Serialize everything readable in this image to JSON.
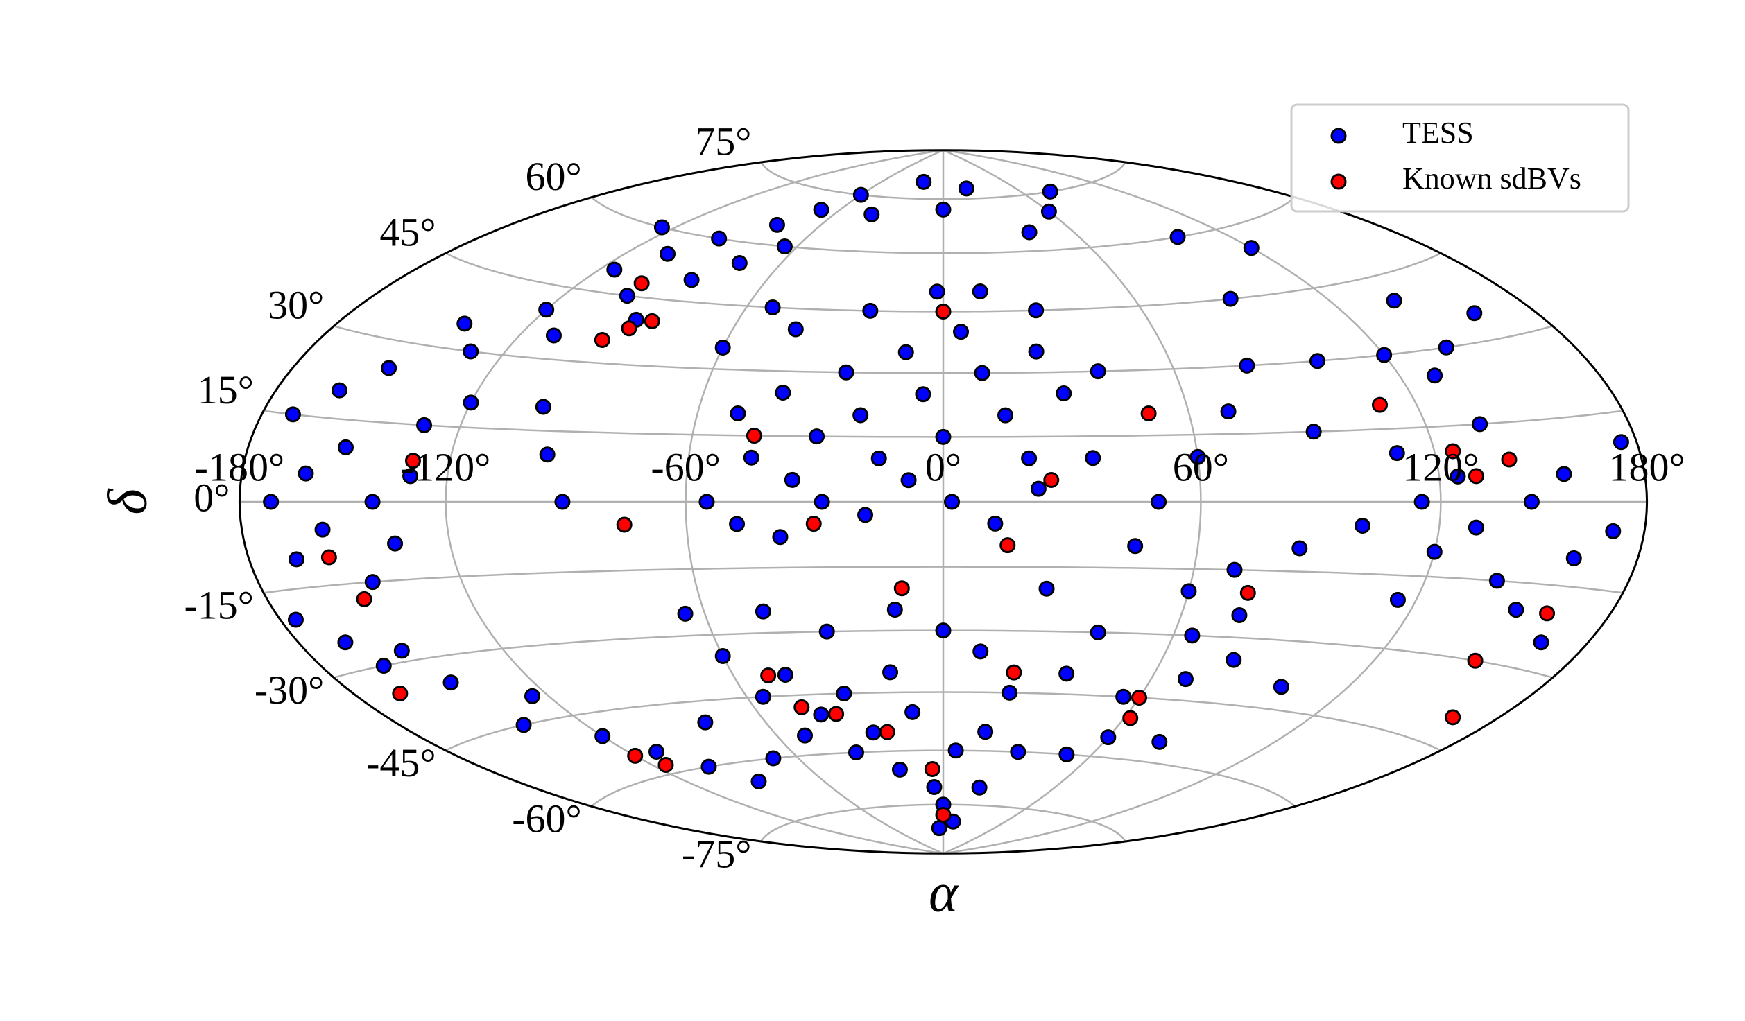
{
  "chart_data": {
    "type": "scatter",
    "projection": "hammer",
    "xlabel": "α",
    "ylabel": "δ",
    "xlim": [
      -180,
      180
    ],
    "ylim": [
      -90,
      90
    ],
    "xticks": [
      {
        "value": -180,
        "label": "-180°"
      },
      {
        "value": -120,
        "label": "-120°"
      },
      {
        "value": -60,
        "label": "-60°"
      },
      {
        "value": 0,
        "label": "0°"
      },
      {
        "value": 60,
        "label": "60°"
      },
      {
        "value": 120,
        "label": "120°"
      },
      {
        "value": 180,
        "label": "180°"
      }
    ],
    "yticks": [
      {
        "value": -75,
        "label": "-75°"
      },
      {
        "value": -60,
        "label": "-60°"
      },
      {
        "value": -45,
        "label": "-45°"
      },
      {
        "value": -30,
        "label": "-30°"
      },
      {
        "value": -15,
        "label": "-15°"
      },
      {
        "value": 0,
        "label": "0°"
      },
      {
        "value": 15,
        "label": "15°"
      },
      {
        "value": 30,
        "label": "30°"
      },
      {
        "value": 45,
        "label": "45°"
      },
      {
        "value": 60,
        "label": "60°"
      },
      {
        "value": 75,
        "label": "75°"
      }
    ],
    "grid": true,
    "legend": "upper right",
    "series": [
      {
        "name": "TESS",
        "color": "#0000ff",
        "x": [
          -50,
          -45,
          -40,
          -35,
          -30,
          -25,
          -20,
          -15,
          -10,
          -5,
          0,
          5,
          10,
          15,
          20,
          25,
          30,
          -55,
          -48,
          -38,
          -28,
          -18,
          -8,
          2,
          12,
          22,
          35,
          40,
          -60,
          -52,
          -42,
          -22,
          -2,
          12,
          28,
          -60,
          -55,
          -50,
          -45,
          -40,
          -35,
          -30,
          -25,
          -20,
          -15,
          -10,
          -5,
          0,
          5,
          10,
          15,
          -65,
          -45,
          -30,
          -12,
          0,
          10,
          20,
          25,
          30,
          -70,
          -80,
          -5,
          20,
          35,
          -120,
          -115,
          -110,
          -105,
          -100,
          -95,
          -90,
          -85,
          -80,
          -75,
          -70,
          -65,
          -130,
          -140,
          -150,
          -125,
          -60,
          -40,
          -20,
          0,
          20,
          40,
          60,
          80,
          100,
          120,
          140,
          160,
          -160,
          -170,
          -170,
          -165,
          -160,
          -155,
          -150,
          -145,
          -140,
          -135,
          -130,
          -165,
          -160,
          -150,
          -145,
          -175,
          -140,
          -120,
          -110,
          -100,
          -90,
          -125,
          -130,
          -120,
          -100,
          -95,
          -90,
          110,
          115,
          120,
          125,
          130,
          135,
          140,
          145,
          150,
          155,
          160,
          165,
          170,
          175,
          130,
          120,
          140,
          115,
          100,
          90,
          60,
          65,
          70,
          75,
          80,
          55,
          60,
          70,
          85,
          50,
          60,
          70,
          80,
          90,
          100,
          45,
          40,
          50,
          80,
          100
        ],
        "y": [
          20,
          10,
          25,
          5,
          15,
          30,
          20,
          10,
          35,
          25,
          15,
          40,
          30,
          20,
          10,
          35,
          25,
          0,
          -5,
          -8,
          0,
          -3,
          5,
          0,
          -5,
          3,
          10,
          30,
          35,
          45,
          40,
          45,
          50,
          50,
          45,
          -35,
          -45,
          -55,
          -40,
          -50,
          -60,
          -45,
          -55,
          -65,
          -40,
          -50,
          -70,
          -75,
          -60,
          -80,
          -55,
          -25,
          -25,
          -30,
          -25,
          -30,
          -35,
          -45,
          -20,
          -60,
          -60,
          -50,
          -82,
          -70,
          -40,
          40,
          50,
          35,
          55,
          45,
          60,
          40,
          50,
          65,
          55,
          70,
          60,
          30,
          35,
          25,
          60,
          75,
          70,
          80,
          72,
          78,
          65,
          70,
          75,
          60,
          55,
          40,
          35,
          20,
          15,
          0,
          -10,
          5,
          -5,
          10,
          -15,
          0,
          -8,
          5,
          -25,
          -30,
          -28,
          -35,
          -20,
          -45,
          -50,
          -55,
          -60,
          -65,
          -40,
          15,
          20,
          20,
          10,
          0,
          10,
          0,
          -10,
          5,
          -5,
          15,
          -15,
          0,
          -20,
          5,
          -10,
          -25,
          -5,
          10,
          25,
          30,
          30,
          -20,
          -5,
          15,
          -20,
          -30,
          -40,
          -25,
          -35,
          -45,
          -55,
          -15,
          -10,
          0,
          10,
          20,
          30,
          45,
          30,
          -10,
          -30,
          -60,
          -55,
          -40
        ]
      },
      {
        "name": "Known sdBVs",
        "color": "#ff0000",
        "x": [
          -95,
          -90,
          -85,
          -100,
          -45,
          -30,
          -10,
          0,
          15,
          25,
          -50,
          -45,
          -35,
          -20,
          -5,
          0,
          20,
          60,
          62,
          75,
          125,
          130,
          140,
          150,
          160,
          165,
          -155,
          -150,
          -165,
          -120,
          -115,
          -130,
          50,
          110,
          -75
        ],
        "y": [
          35,
          38,
          40,
          48,
          15,
          -5,
          -20,
          45,
          -10,
          5,
          -40,
          -48,
          -50,
          -55,
          -65,
          -78,
          -40,
          -45,
          -50,
          -20,
          10,
          5,
          8,
          -30,
          -20,
          -40,
          -10,
          -18,
          -35,
          -55,
          -58,
          8,
          20,
          20,
          -5
        ]
      }
    ]
  }
}
